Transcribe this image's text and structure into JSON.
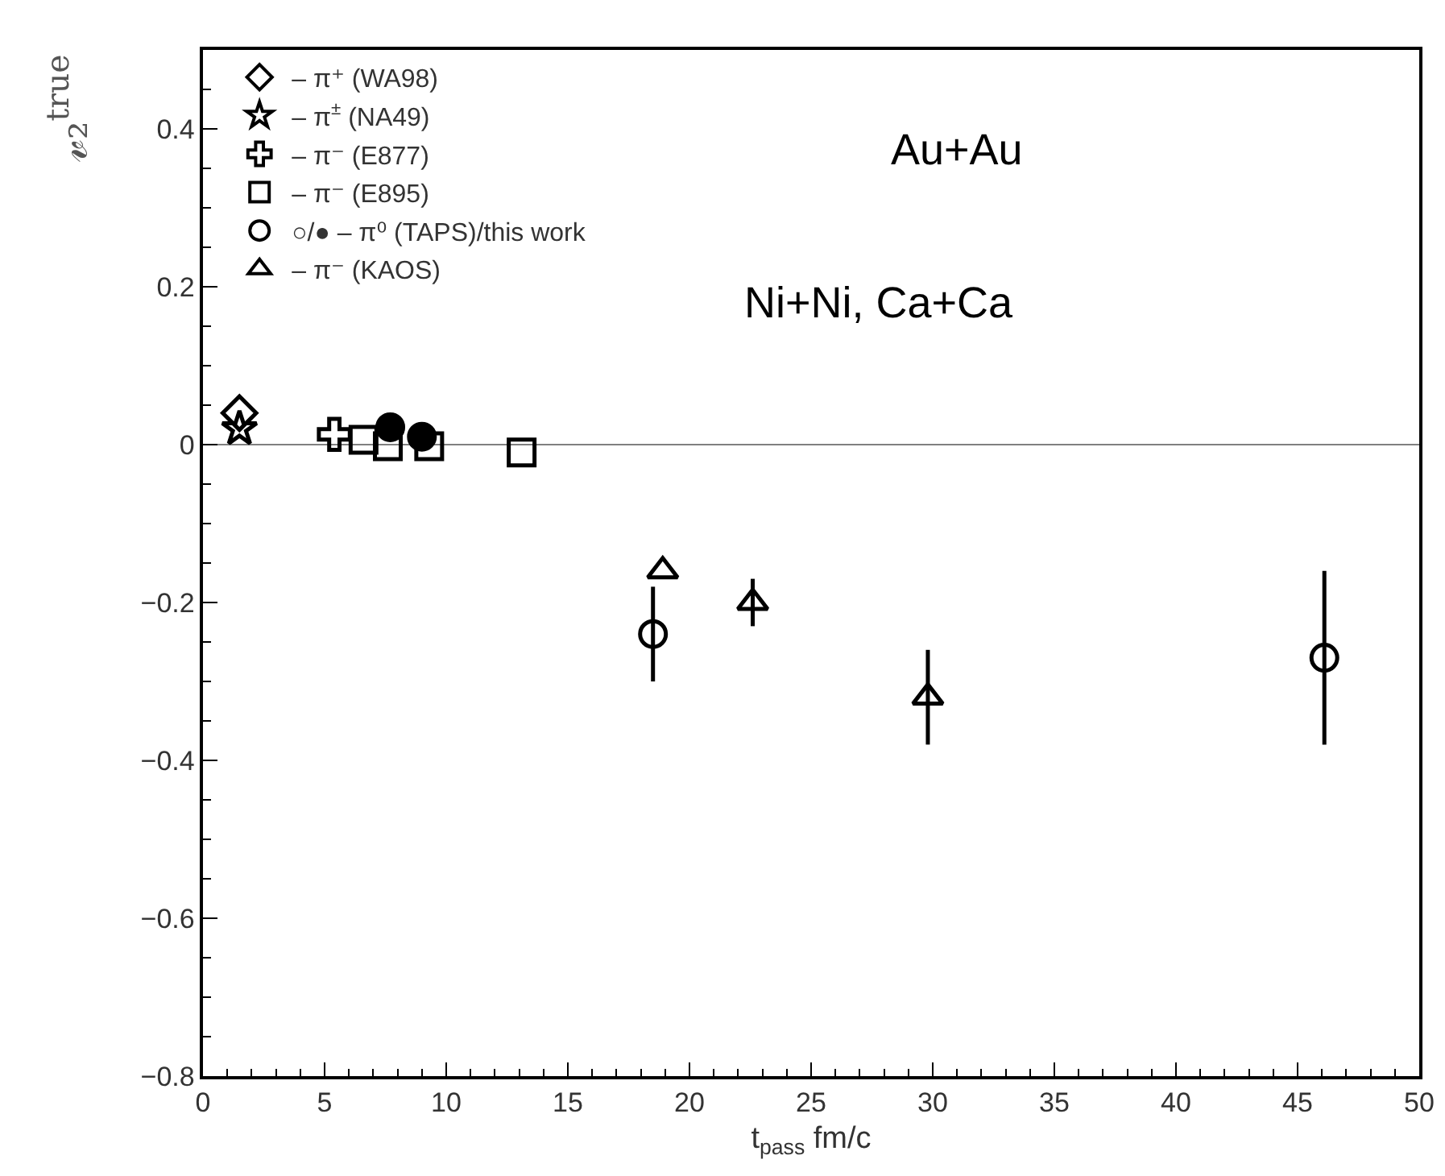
{
  "chart_data": {
    "type": "scatter",
    "xlabel": "t$_{pass}$ fm/c",
    "ylabel": "𝓋₂$^{true}$",
    "annotations": [
      "Au+Au",
      "Ni+Ni, Ca+Ca"
    ],
    "series": [
      {
        "name": "– π⁺ (WA98)",
        "color": "#000000",
        "marker": "diamond",
        "x": [
          1.5
        ],
        "values": [
          0.04
        ]
      },
      {
        "name": "– π$^{±}$ (NA49)",
        "color": "#000000",
        "marker": "star",
        "x": [
          1.5
        ],
        "values": [
          0.02
        ]
      },
      {
        "name": "– π⁻ (E877)",
        "color": "#000000",
        "marker": "cross",
        "x": [
          5.4
        ],
        "values": [
          0.013
        ]
      },
      {
        "color": "#000000",
        "marker": "circle",
        "x": [
          7.7,
          9.0
        ],
        "values": [
          0.022,
          0.01
        ]
      },
      {
        "name": "– π⁻ (E895)",
        "color": "#000000",
        "marker": "square",
        "x": [
          6.6,
          7.6,
          9.3,
          13.1
        ],
        "values": [
          0.006,
          -0.002,
          -0.002,
          -0.01
        ]
      },
      {
        "name": "○/● – π⁰ (TAPS)/this work",
        "color": "#000000",
        "marker": "circle",
        "x": [
          18.5,
          46.1
        ],
        "values": [
          -0.24,
          -0.27
        ],
        "errors": [
          [
            -0.3,
            -0.18
          ],
          [
            -0.38,
            -0.16
          ]
        ]
      },
      {
        "name": "– π⁻ (KAOS)",
        "color": "#000000",
        "marker": "triangle",
        "x": [
          18.9,
          22.6,
          29.8
        ],
        "values": [
          -0.16,
          -0.2,
          -0.32
        ],
        "errors": [
          null,
          [
            -0.23,
            -0.17
          ],
          [
            -0.38,
            -0.26
          ]
        ]
      }
    ],
    "xlim": [
      0,
      50
    ],
    "xticks": [
      0,
      5,
      10,
      15,
      20,
      25,
      30,
      35,
      40,
      45,
      50
    ],
    "ylim": [
      -0.8,
      0.5
    ],
    "yticks": [
      -0.8,
      -0.6,
      -0.4,
      -0.2,
      0,
      0.2,
      0.4
    ],
    "ref_lines": [
      {
        "axis": "y",
        "value": 0,
        "color": "#808080"
      }
    ],
    "grid": false,
    "legend": "top left"
  }
}
